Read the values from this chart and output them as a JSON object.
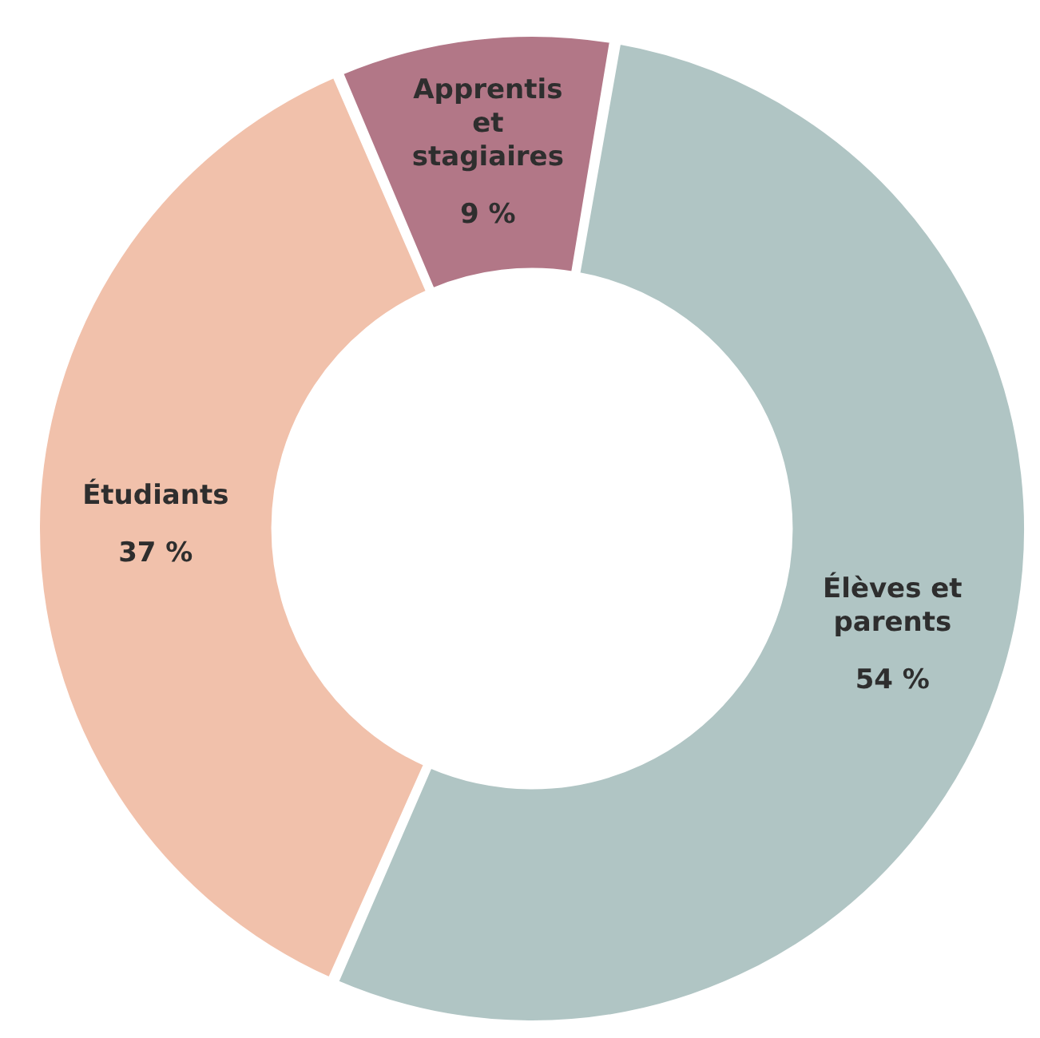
{
  "chart_data": {
    "type": "donut",
    "categories": [
      "Élèves et parents",
      "Étudiants",
      "Apprentis et stagiaires"
    ],
    "values": [
      54,
      37,
      9
    ],
    "colors": [
      "#b0c5c4",
      "#f1c1ab",
      "#b27787"
    ],
    "value_labels": [
      "54 %",
      "37 %",
      "9 %"
    ]
  }
}
